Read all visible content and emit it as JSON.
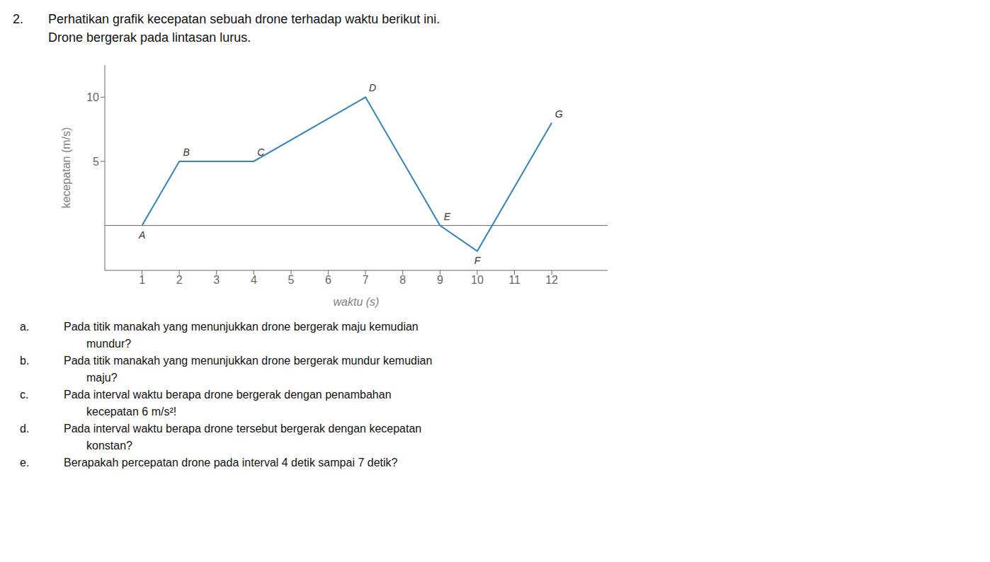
{
  "chart_data": {
    "type": "line",
    "title": "Perhatikan grafik kecepatan sebuah drone terhadap waktu berikut ini.",
    "subtitle": "Drone bergerak pada lintasan lurus.",
    "xlabel": "waktu (s)",
    "ylabel": "kecepatan (m/s)",
    "x": [
      1,
      2,
      4,
      7,
      9,
      10,
      12
    ],
    "values": [
      0,
      5,
      5,
      10,
      0,
      -2,
      8
    ],
    "point_labels": [
      "A",
      "B",
      "C",
      "D",
      "E",
      "F",
      "G"
    ],
    "xlim": [
      0,
      13.5
    ],
    "xticks": [
      1,
      2,
      3,
      4,
      5,
      6,
      7,
      8,
      9,
      10,
      11,
      12
    ],
    "ylim": [
      -3.5,
      12.5
    ],
    "yticks": [
      5,
      10
    ],
    "grid": false,
    "annotations": [
      [
        "2."
      ],
      [
        "a.",
        "Pada titik manakah yang menunjukkan  drone bergerak maju kemudian",
        "mundur?"
      ],
      [
        "b.",
        "Pada titik manakah yang menunjukkan  drone bergerak mundur kemudian",
        "maju?"
      ],
      [
        "c.",
        "Pada interval waktu berapa drone bergerak dengan penambahan",
        "kecepatan 6 m/s²!"
      ],
      [
        "d.",
        "Pada interval waktu berapa drone tersebut bergerak dengan kecepatan",
        "konstan?"
      ],
      [
        "e.",
        "Berapakah percepatan drone pada interval 4 detik sampai 7 detik?"
      ]
    ]
  }
}
